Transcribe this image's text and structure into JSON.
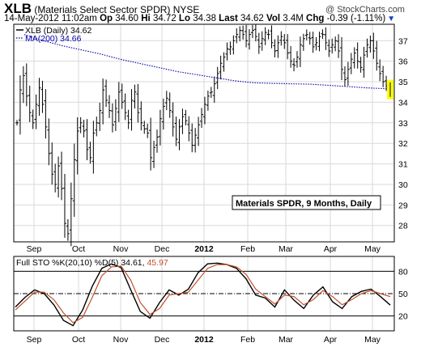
{
  "header": {
    "symbol": "XLB",
    "name": "(Materials Select Sector SPDR)",
    "exchange": "NYSE",
    "watermark": "@ StockCharts.com",
    "date": "14-May-2012 11:02am",
    "op_label": "Op",
    "op": "34.60",
    "hi_label": "Hi",
    "hi": "34.72",
    "lo_label": "Lo",
    "lo": "34.38",
    "last_label": "Last",
    "last": "34.62",
    "vol_label": "Vol",
    "vol": "3.4M",
    "chg_label": "Chg",
    "chg": "-0.39 (-1.11%)",
    "chg_icon": "down-triangle-icon"
  },
  "colors": {
    "price": "#000000",
    "ma": "#0000aa",
    "k": "#000000",
    "d": "#c0502a",
    "highlight": "#ffff00",
    "grid": "#d9d9d9"
  },
  "chart_data": [
    {
      "type": "ohlc",
      "legend": [
        {
          "label": "XLB (Daily) 34.62",
          "color": "#000000",
          "style": "solid"
        },
        {
          "label": "MA(200) 34.66",
          "color": "#0000aa",
          "style": "dotted"
        }
      ],
      "annotation": "Materials SPDR, 9 Months, Daily",
      "x_ticks": [
        "Sep",
        "Oct",
        "Nov",
        "Dec",
        "2012",
        "Feb",
        "Mar",
        "Apr",
        "May"
      ],
      "y_ticks": [
        28,
        29,
        30,
        31,
        32,
        33,
        34,
        35,
        36,
        37
      ],
      "ylim": [
        27.2,
        37.8
      ],
      "grid": true,
      "last_value": 34.62,
      "ma200": {
        "name": "MA(200)",
        "values": [
          37.3,
          37.0,
          36.75,
          36.55,
          36.35,
          36.1,
          35.9,
          35.7,
          35.5,
          35.35,
          35.2,
          35.05,
          34.95,
          34.92,
          34.9,
          34.88,
          34.82,
          34.76,
          34.7,
          34.66
        ]
      },
      "close_path": [
        33.0,
        34.6,
        35.3,
        34.3,
        33.5,
        33.0,
        33.9,
        34.7,
        33.9,
        32.8,
        31.5,
        30.5,
        30.0,
        30.9,
        29.8,
        28.1,
        27.6,
        29.3,
        31.2,
        32.6,
        33.0,
        32.6,
        31.7,
        31.3,
        32.5,
        33.0,
        33.6,
        34.6,
        34.1,
        33.6,
        32.9,
        33.7,
        34.5,
        34.0,
        33.5,
        33.0,
        34.1,
        34.5,
        33.5,
        33.0,
        32.7,
        32.5,
        31.3,
        31.8,
        32.3,
        33.2,
        33.8,
        34.2,
        33.6,
        32.8,
        32.2,
        32.8,
        33.3,
        33.1,
        32.5,
        31.9,
        32.4,
        32.9,
        33.4,
        33.9,
        34.3,
        34.5,
        34.9,
        35.4,
        35.9,
        36.2,
        36.6,
        36.7,
        37.0,
        37.3,
        37.5,
        37.3,
        37.0,
        37.3,
        37.5,
        37.2,
        36.7,
        37.1,
        37.4,
        37.3,
        36.9,
        36.5,
        36.9,
        37.2,
        36.9,
        36.4,
        36.0,
        35.8,
        36.2,
        36.8,
        37.1,
        37.3,
        37.1,
        36.7,
        36.9,
        37.2,
        37.3,
        36.9,
        36.5,
        36.8,
        37.0,
        36.5,
        35.6,
        35.1,
        35.6,
        36.1,
        36.4,
        36.0,
        35.7,
        36.3,
        36.8,
        37.0,
        36.5,
        35.9,
        35.4,
        35.0,
        34.8,
        34.62
      ]
    },
    {
      "type": "line",
      "title": "Full STO %K(20,10) %D(5) 34.61, 45.97",
      "title_k_part": "Full STO %K(20,10) %D(5) 34.61,",
      "title_d_part": "45.97",
      "x_ticks": [
        "Sep",
        "Oct",
        "Nov",
        "Dec",
        "2012",
        "Feb",
        "Mar",
        "Apr",
        "May"
      ],
      "y_ticks": [
        20,
        50,
        80
      ],
      "ylim": [
        0,
        100
      ],
      "series": [
        {
          "name": "%K(20,10)",
          "values": [
            32,
            45,
            55,
            50,
            35,
            14,
            7,
            28,
            60,
            84,
            90,
            85,
            55,
            26,
            17,
            38,
            55,
            48,
            56,
            78,
            90,
            91,
            89,
            84,
            70,
            48,
            44,
            32,
            55,
            41,
            30,
            48,
            59,
            39,
            30,
            46,
            53,
            56,
            46.0,
            34.61
          ]
        },
        {
          "name": "%D(5)",
          "values": [
            28,
            40,
            52,
            52,
            42,
            24,
            11,
            18,
            45,
            74,
            86,
            87,
            68,
            38,
            22,
            30,
            48,
            50,
            52,
            68,
            84,
            89,
            89,
            86,
            76,
            56,
            46,
            36,
            48,
            46,
            35,
            42,
            54,
            46,
            35,
            42,
            50,
            54,
            50.0,
            45.97
          ]
        }
      ]
    }
  ]
}
